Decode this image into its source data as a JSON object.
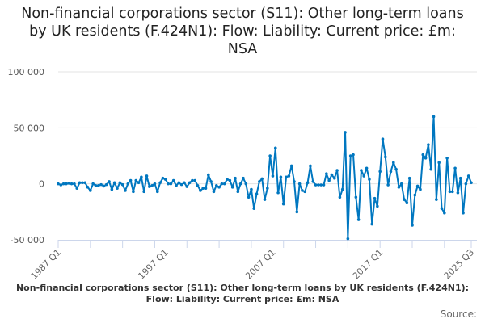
{
  "chart_data": {
    "type": "line",
    "title": "Non-financial corporations sector (S11): Other long-term loans by UK residents (F.424N1): Flow: Liability: Current price: £m: NSA",
    "xlabel": "",
    "ylabel": "",
    "x_start": "1987 Q1",
    "x_end": "2025 Q3",
    "frequency": "quarterly",
    "x_ticks": [
      "1987 Q1",
      "1997 Q1",
      "2007 Q1",
      "2017 Q1",
      "2025 Q3"
    ],
    "y_ticks": [
      -50000,
      0,
      50000,
      100000
    ],
    "y_tick_labels": [
      "-50 000",
      "0",
      "50 000",
      "100 000"
    ],
    "ylim": [
      -50000,
      100000
    ],
    "grid": true,
    "color": "#0077c0",
    "values": [
      0,
      -1000,
      0,
      0,
      500,
      0,
      0,
      -4000,
      1000,
      1000,
      1000,
      -3000,
      -6000,
      0,
      -1500,
      -1500,
      -700,
      -2000,
      -700,
      2000,
      -5000,
      1000,
      -4000,
      1000,
      -700,
      -6000,
      0,
      3000,
      -7000,
      3000,
      1000,
      6000,
      -7000,
      7000,
      -2500,
      -1500,
      0,
      -7000,
      1000,
      5000,
      4000,
      0,
      0,
      3000,
      -1500,
      1000,
      -700,
      1000,
      -2500,
      1000,
      3000,
      3000,
      -1500,
      -6000,
      -4000,
      -4000,
      8000,
      2000,
      -7000,
      -1500,
      -3000,
      0,
      0,
      4000,
      3000,
      -3000,
      5000,
      -7000,
      0,
      5000,
      0,
      -12000,
      -5000,
      -22000,
      -9000,
      2000,
      4500,
      -14000,
      -4000,
      25000,
      7000,
      32000,
      -8000,
      6000,
      -18000,
      6000,
      7000,
      16000,
      2000,
      -25000,
      0,
      -6000,
      -7000,
      1000,
      16000,
      2000,
      -1000,
      -1000,
      -1000,
      -1000,
      9000,
      3000,
      8000,
      5000,
      12000,
      -12000,
      -5000,
      46000,
      -49000,
      25000,
      26000,
      -12000,
      -32000,
      12000,
      7000,
      14000,
      4000,
      -36000,
      -13000,
      -20000,
      11000,
      40000,
      24000,
      -1000,
      11000,
      19000,
      13000,
      -3000,
      0,
      -14000,
      -17000,
      5000,
      -37000,
      -10000,
      -2000,
      -5000,
      26000,
      23000,
      35000,
      13000,
      60000,
      -14000,
      19000,
      -22000,
      -26000,
      23000,
      -7000,
      -7000,
      14000,
      -8000,
      5000,
      -26000,
      0,
      7000,
      1000
    ]
  },
  "footer": {
    "series_label": "Non-financial corporations sector (S11): Other long-term loans by UK residents (F.424N1): Flow: Liability: Current price: £m: NSA",
    "source_label": "Source:"
  }
}
